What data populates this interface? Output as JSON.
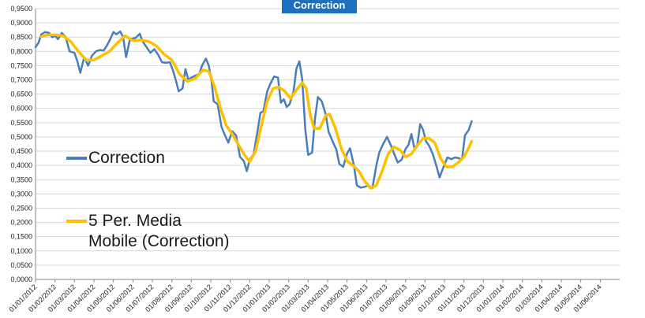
{
  "chart_data": {
    "type": "line",
    "title": "Correction",
    "xlabel": "",
    "ylabel": "",
    "ylim": [
      0,
      0.95
    ],
    "y_ticks": [
      "0,0000",
      "0,0500",
      "0,1000",
      "0,1500",
      "0,2000",
      "0,2500",
      "0,3000",
      "0,3500",
      "0,4000",
      "0,4500",
      "0,5000",
      "0,5500",
      "0,6000",
      "0,6500",
      "0,7000",
      "0,7500",
      "0,8000",
      "0,8500",
      "0,9000",
      "0,9500"
    ],
    "x_ticks": [
      "01/01/2012",
      "01/02/2012",
      "01/03/2012",
      "01/04/2012",
      "01/05/2012",
      "01/06/2012",
      "01/07/2012",
      "01/08/2012",
      "01/09/2012",
      "01/10/2012",
      "01/11/2012",
      "01/12/2012",
      "01/01/2013",
      "01/02/2013",
      "01/03/2013",
      "01/04/2013",
      "01/05/2013",
      "01/06/2013",
      "01/07/2013",
      "01/08/2013",
      "01/09/2013",
      "01/10/2013",
      "01/11/2013",
      "01/12/2013",
      "01/01/2014",
      "01/02/2014",
      "01/03/2014",
      "01/04/2014",
      "01/05/2014",
      "01/06/2014"
    ],
    "grid": true,
    "legend_position": "left",
    "series": [
      {
        "name": "Correction",
        "color": "#4a7ebb",
        "points": [
          [
            0.0,
            0.815
          ],
          [
            0.15,
            0.83
          ],
          [
            0.3,
            0.86
          ],
          [
            0.5,
            0.868
          ],
          [
            0.7,
            0.865
          ],
          [
            0.85,
            0.85
          ],
          [
            1.0,
            0.855
          ],
          [
            1.15,
            0.843
          ],
          [
            1.35,
            0.865
          ],
          [
            1.55,
            0.85
          ],
          [
            1.75,
            0.8
          ],
          [
            2.0,
            0.795
          ],
          [
            2.15,
            0.765
          ],
          [
            2.3,
            0.725
          ],
          [
            2.5,
            0.78
          ],
          [
            2.7,
            0.75
          ],
          [
            2.9,
            0.785
          ],
          [
            3.1,
            0.8
          ],
          [
            3.3,
            0.805
          ],
          [
            3.5,
            0.803
          ],
          [
            3.7,
            0.825
          ],
          [
            3.85,
            0.845
          ],
          [
            4.0,
            0.868
          ],
          [
            4.15,
            0.86
          ],
          [
            4.35,
            0.87
          ],
          [
            4.5,
            0.85
          ],
          [
            4.65,
            0.78
          ],
          [
            4.85,
            0.843
          ],
          [
            5.0,
            0.845
          ],
          [
            5.15,
            0.848
          ],
          [
            5.35,
            0.862
          ],
          [
            5.5,
            0.835
          ],
          [
            5.7,
            0.815
          ],
          [
            5.9,
            0.795
          ],
          [
            6.1,
            0.808
          ],
          [
            6.3,
            0.788
          ],
          [
            6.5,
            0.762
          ],
          [
            6.7,
            0.76
          ],
          [
            6.9,
            0.762
          ],
          [
            7.05,
            0.735
          ],
          [
            7.2,
            0.7
          ],
          [
            7.35,
            0.66
          ],
          [
            7.55,
            0.67
          ],
          [
            7.7,
            0.738
          ],
          [
            7.85,
            0.7
          ],
          [
            8.0,
            0.708
          ],
          [
            8.2,
            0.715
          ],
          [
            8.4,
            0.72
          ],
          [
            8.55,
            0.75
          ],
          [
            8.75,
            0.775
          ],
          [
            8.9,
            0.75
          ],
          [
            9.05,
            0.69
          ],
          [
            9.15,
            0.625
          ],
          [
            9.35,
            0.615
          ],
          [
            9.55,
            0.535
          ],
          [
            9.7,
            0.51
          ],
          [
            9.9,
            0.48
          ],
          [
            10.1,
            0.52
          ],
          [
            10.3,
            0.505
          ],
          [
            10.5,
            0.43
          ],
          [
            10.7,
            0.415
          ],
          [
            10.85,
            0.38
          ],
          [
            11.0,
            0.42
          ],
          [
            11.2,
            0.44
          ],
          [
            11.4,
            0.52
          ],
          [
            11.55,
            0.585
          ],
          [
            11.7,
            0.59
          ],
          [
            11.9,
            0.66
          ],
          [
            12.05,
            0.685
          ],
          [
            12.25,
            0.712
          ],
          [
            12.45,
            0.708
          ],
          [
            12.6,
            0.62
          ],
          [
            12.75,
            0.632
          ],
          [
            12.9,
            0.605
          ],
          [
            13.05,
            0.615
          ],
          [
            13.25,
            0.66
          ],
          [
            13.4,
            0.74
          ],
          [
            13.55,
            0.765
          ],
          [
            13.7,
            0.7
          ],
          [
            13.85,
            0.53
          ],
          [
            14.0,
            0.437
          ],
          [
            14.2,
            0.445
          ],
          [
            14.35,
            0.565
          ],
          [
            14.5,
            0.64
          ],
          [
            14.7,
            0.625
          ],
          [
            14.9,
            0.58
          ],
          [
            15.05,
            0.518
          ],
          [
            15.25,
            0.485
          ],
          [
            15.45,
            0.455
          ],
          [
            15.6,
            0.405
          ],
          [
            15.8,
            0.395
          ],
          [
            16.0,
            0.442
          ],
          [
            16.15,
            0.46
          ],
          [
            16.35,
            0.4
          ],
          [
            16.5,
            0.33
          ],
          [
            16.7,
            0.322
          ],
          [
            16.9,
            0.325
          ],
          [
            17.1,
            0.33
          ],
          [
            17.3,
            0.32
          ],
          [
            17.5,
            0.4
          ],
          [
            17.65,
            0.445
          ],
          [
            17.85,
            0.475
          ],
          [
            18.05,
            0.5
          ],
          [
            18.25,
            0.47
          ],
          [
            18.45,
            0.435
          ],
          [
            18.6,
            0.41
          ],
          [
            18.8,
            0.42
          ],
          [
            19.0,
            0.458
          ],
          [
            19.15,
            0.472
          ],
          [
            19.3,
            0.51
          ],
          [
            19.45,
            0.462
          ],
          [
            19.6,
            0.47
          ],
          [
            19.75,
            0.545
          ],
          [
            19.9,
            0.525
          ],
          [
            20.05,
            0.485
          ],
          [
            20.2,
            0.47
          ],
          [
            20.4,
            0.44
          ],
          [
            20.6,
            0.395
          ],
          [
            20.75,
            0.358
          ],
          [
            20.95,
            0.395
          ],
          [
            21.15,
            0.428
          ],
          [
            21.35,
            0.422
          ],
          [
            21.55,
            0.428
          ],
          [
            21.75,
            0.425
          ],
          [
            21.9,
            0.42
          ],
          [
            22.05,
            0.505
          ],
          [
            22.25,
            0.525
          ],
          [
            22.4,
            0.555
          ]
        ]
      },
      {
        "name": "5 Per. Media Mobile (Correction)",
        "name_lines": [
          "5 Per. Media",
          "Mobile (Correction)"
        ],
        "color": "#ffc000",
        "points": [
          [
            0.3,
            0.852
          ],
          [
            0.6,
            0.858
          ],
          [
            1.0,
            0.858
          ],
          [
            1.4,
            0.855
          ],
          [
            1.8,
            0.835
          ],
          [
            2.2,
            0.8
          ],
          [
            2.6,
            0.77
          ],
          [
            3.0,
            0.77
          ],
          [
            3.4,
            0.785
          ],
          [
            3.8,
            0.8
          ],
          [
            4.2,
            0.83
          ],
          [
            4.6,
            0.855
          ],
          [
            5.0,
            0.838
          ],
          [
            5.4,
            0.84
          ],
          [
            5.8,
            0.835
          ],
          [
            6.2,
            0.82
          ],
          [
            6.6,
            0.79
          ],
          [
            7.0,
            0.77
          ],
          [
            7.4,
            0.72
          ],
          [
            7.8,
            0.695
          ],
          [
            8.2,
            0.705
          ],
          [
            8.6,
            0.735
          ],
          [
            8.9,
            0.73
          ],
          [
            9.2,
            0.675
          ],
          [
            9.5,
            0.6
          ],
          [
            9.8,
            0.54
          ],
          [
            10.1,
            0.51
          ],
          [
            10.4,
            0.475
          ],
          [
            10.7,
            0.44
          ],
          [
            11.0,
            0.413
          ],
          [
            11.3,
            0.45
          ],
          [
            11.6,
            0.54
          ],
          [
            11.9,
            0.625
          ],
          [
            12.2,
            0.67
          ],
          [
            12.5,
            0.675
          ],
          [
            12.8,
            0.66
          ],
          [
            13.1,
            0.635
          ],
          [
            13.4,
            0.665
          ],
          [
            13.7,
            0.69
          ],
          [
            13.9,
            0.67
          ],
          [
            14.1,
            0.58
          ],
          [
            14.3,
            0.53
          ],
          [
            14.6,
            0.53
          ],
          [
            14.9,
            0.575
          ],
          [
            15.1,
            0.58
          ],
          [
            15.4,
            0.53
          ],
          [
            15.7,
            0.46
          ],
          [
            16.0,
            0.415
          ],
          [
            16.3,
            0.4
          ],
          [
            16.6,
            0.38
          ],
          [
            16.9,
            0.345
          ],
          [
            17.2,
            0.32
          ],
          [
            17.5,
            0.33
          ],
          [
            17.8,
            0.38
          ],
          [
            18.1,
            0.44
          ],
          [
            18.4,
            0.465
          ],
          [
            18.7,
            0.455
          ],
          [
            19.0,
            0.43
          ],
          [
            19.3,
            0.44
          ],
          [
            19.6,
            0.47
          ],
          [
            19.9,
            0.495
          ],
          [
            20.2,
            0.495
          ],
          [
            20.5,
            0.48
          ],
          [
            20.8,
            0.425
          ],
          [
            21.1,
            0.395
          ],
          [
            21.4,
            0.395
          ],
          [
            21.7,
            0.41
          ],
          [
            22.0,
            0.43
          ],
          [
            22.2,
            0.455
          ],
          [
            22.4,
            0.485
          ]
        ]
      }
    ]
  }
}
